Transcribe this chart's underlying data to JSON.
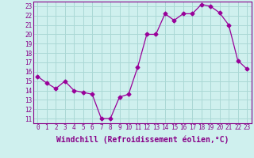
{
  "x": [
    0,
    1,
    2,
    3,
    4,
    5,
    6,
    7,
    8,
    9,
    10,
    11,
    12,
    13,
    14,
    15,
    16,
    17,
    18,
    19,
    20,
    21,
    22,
    23
  ],
  "y": [
    15.5,
    14.8,
    14.2,
    15.0,
    14.0,
    13.8,
    13.6,
    11.0,
    11.0,
    13.3,
    13.6,
    16.5,
    20.0,
    20.0,
    22.2,
    21.5,
    22.2,
    22.2,
    23.2,
    23.0,
    22.3,
    21.0,
    17.2,
    16.3
  ],
  "line_color": "#990099",
  "marker": "D",
  "marker_size": 2.5,
  "bg_color": "#cff0ee",
  "grid_color": "#aad8d5",
  "xlabel": "Windchill (Refroidissement éolien,°C)",
  "xlabel_color": "#880088",
  "ylabel_ticks": [
    11,
    12,
    13,
    14,
    15,
    16,
    17,
    18,
    19,
    20,
    21,
    22,
    23
  ],
  "ylim": [
    10.5,
    23.5
  ],
  "xlim": [
    -0.5,
    23.5
  ],
  "xticks": [
    0,
    1,
    2,
    3,
    4,
    5,
    6,
    7,
    8,
    9,
    10,
    11,
    12,
    13,
    14,
    15,
    16,
    17,
    18,
    19,
    20,
    21,
    22,
    23
  ],
  "tick_color": "#880088",
  "tick_fontsize": 5.5,
  "xlabel_fontsize": 7.0,
  "spine_color": "#880088",
  "linewidth": 0.9
}
